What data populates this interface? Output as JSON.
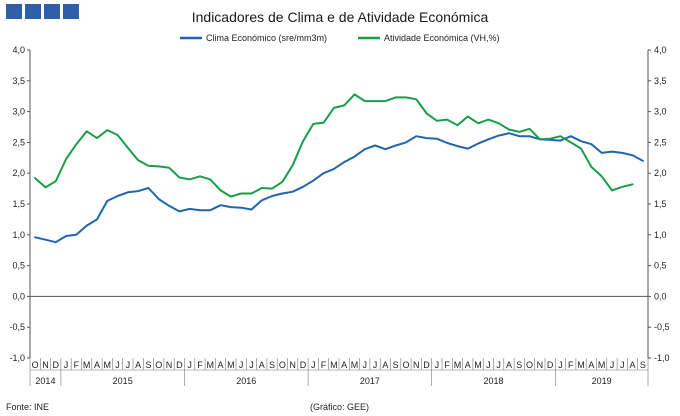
{
  "chart_data": {
    "type": "line",
    "title": "Indicadores de Clima e de Atividade Económica",
    "ylim": [
      -1.0,
      4.0
    ],
    "y_ticks": [
      "4,0",
      "3,5",
      "3,0",
      "2,5",
      "2,0",
      "1,5",
      "1,0",
      "0,5",
      "0,0",
      "-0,5",
      "-1,0"
    ],
    "y_tick_values": [
      4.0,
      3.5,
      3.0,
      2.5,
      2.0,
      1.5,
      1.0,
      0.5,
      0.0,
      -0.5,
      -1.0
    ],
    "month_labels": [
      "O",
      "N",
      "D",
      "J",
      "F",
      "M",
      "A",
      "M",
      "J",
      "J",
      "A",
      "S",
      "O",
      "N",
      "D",
      "J",
      "F",
      "M",
      "A",
      "M",
      "J",
      "J",
      "A",
      "S",
      "O",
      "N",
      "D",
      "J",
      "F",
      "M",
      "A",
      "M",
      "J",
      "J",
      "A",
      "S",
      "O",
      "N",
      "D",
      "J",
      "F",
      "M",
      "A",
      "M",
      "J",
      "J",
      "A",
      "S",
      "O",
      "N",
      "D",
      "J",
      "F",
      "M",
      "A",
      "M",
      "J",
      "J",
      "A",
      "S"
    ],
    "year_labels": [
      {
        "label": "2014",
        "start": 0,
        "end": 2
      },
      {
        "label": "2015",
        "start": 3,
        "end": 14
      },
      {
        "label": "2016",
        "start": 15,
        "end": 26
      },
      {
        "label": "2017",
        "start": 27,
        "end": 38
      },
      {
        "label": "2018",
        "start": 39,
        "end": 50
      },
      {
        "label": "2019",
        "start": 51,
        "end": 59
      }
    ],
    "series": [
      {
        "name": "Clima Económico (sre/mm3m)",
        "color": "#2166ac",
        "values": [
          0.96,
          0.92,
          0.88,
          0.98,
          1.0,
          1.15,
          1.25,
          1.55,
          1.63,
          1.69,
          1.71,
          1.76,
          1.58,
          1.47,
          1.38,
          1.42,
          1.4,
          1.4,
          1.48,
          1.45,
          1.44,
          1.41,
          1.56,
          1.63,
          1.67,
          1.7,
          1.78,
          1.88,
          2.0,
          2.07,
          2.18,
          2.27,
          2.39,
          2.45,
          2.39,
          2.45,
          2.5,
          2.6,
          2.57,
          2.56,
          2.49,
          2.44,
          2.4,
          2.48,
          2.55,
          2.61,
          2.65,
          2.6,
          2.6,
          2.55,
          2.54,
          2.53,
          2.6,
          2.52,
          2.47,
          2.33,
          2.35,
          2.33,
          2.29,
          2.2
        ]
      },
      {
        "name": "Atividade Económica (VH,%)",
        "color": "#1a9e49",
        "values": [
          1.92,
          1.77,
          1.87,
          2.23,
          2.47,
          2.68,
          2.57,
          2.7,
          2.62,
          2.41,
          2.21,
          2.12,
          2.11,
          2.09,
          1.93,
          1.9,
          1.95,
          1.9,
          1.72,
          1.62,
          1.67,
          1.67,
          1.76,
          1.75,
          1.86,
          2.13,
          2.52,
          2.8,
          2.82,
          3.06,
          3.1,
          3.28,
          3.17,
          3.17,
          3.17,
          3.23,
          3.23,
          3.2,
          2.97,
          2.85,
          2.87,
          2.78,
          2.92,
          2.81,
          2.87,
          2.81,
          2.71,
          2.67,
          2.72,
          2.55,
          2.56,
          2.6,
          2.5,
          2.4,
          2.1,
          1.95,
          1.72,
          1.78,
          1.82,
          null
        ]
      }
    ]
  },
  "footer": {
    "source": "Fonte: INE",
    "graph_credit": "(Gráfico: GEE)"
  }
}
